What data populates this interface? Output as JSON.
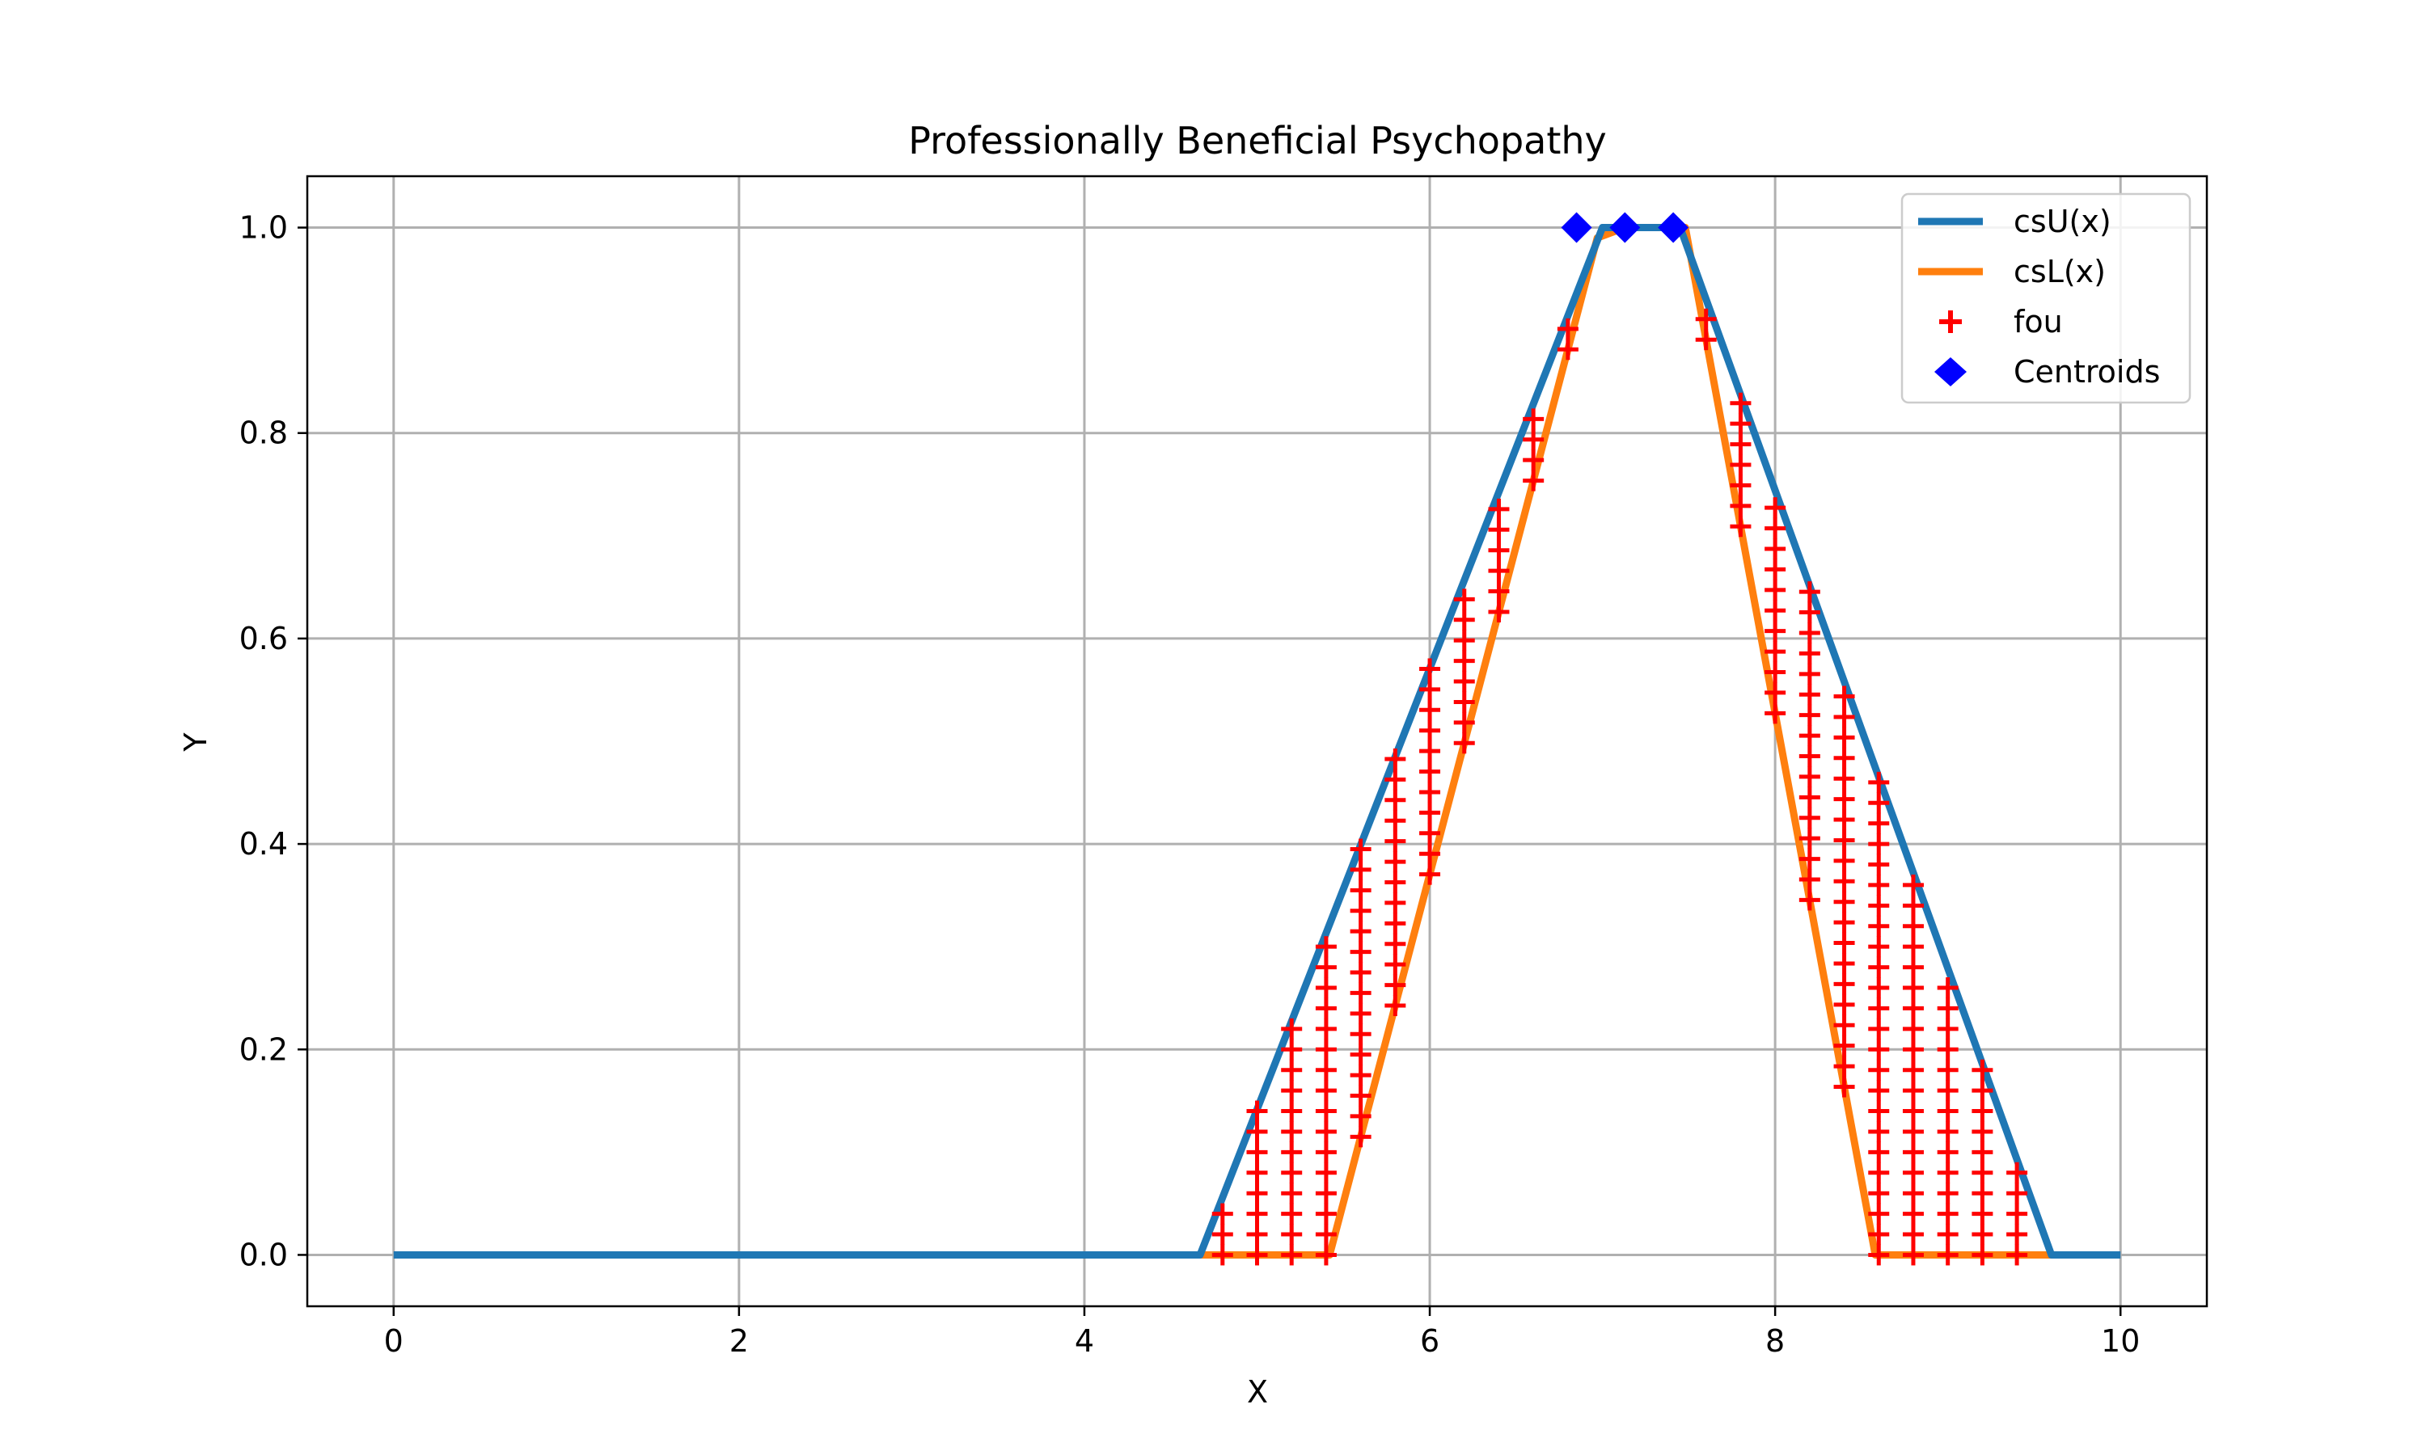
{
  "chart_data": {
    "type": "line",
    "title": "Professionally Beneficial Psychopathy",
    "xlabel": "X",
    "ylabel": "Y",
    "xlim": [
      -0.5,
      10.5
    ],
    "ylim": [
      -0.05,
      1.05
    ],
    "x_ticks": [
      "0",
      "2",
      "4",
      "6",
      "8",
      "10"
    ],
    "y_ticks": [
      "0.0",
      "0.2",
      "0.4",
      "0.6",
      "0.8",
      "1.0"
    ],
    "grid": true,
    "legend_position": "top-right",
    "series": [
      {
        "name": "csU(x)",
        "color": "#1f77b4",
        "points": [
          [
            0,
            0
          ],
          [
            4.67,
            0
          ],
          [
            7.0,
            1.0
          ],
          [
            7.45,
            1.0
          ],
          [
            9.6,
            0
          ],
          [
            10,
            0
          ]
        ]
      },
      {
        "name": "csL(x)",
        "color": "#ff7f0e",
        "points": [
          [
            4.67,
            0
          ],
          [
            5.42,
            0
          ],
          [
            6.97,
            0.99
          ],
          [
            7.13,
            1.0
          ],
          [
            7.48,
            1.0
          ],
          [
            8.58,
            0
          ],
          [
            9.6,
            0
          ]
        ]
      }
    ],
    "fou": {
      "name": "fou",
      "color": "#ff0000",
      "marker": "plus",
      "x": [
        4.8,
        5.0,
        5.2,
        5.4,
        5.6,
        5.8,
        6.0,
        6.2,
        6.4,
        6.6,
        6.8,
        7.6,
        7.8,
        8.0,
        8.2,
        8.4,
        8.6,
        8.8,
        9.0,
        9.2,
        9.4
      ],
      "step": 0.02
    },
    "centroids": {
      "name": "Centroids",
      "color": "#0000ff",
      "marker": "diamond",
      "x": [
        6.85,
        7.13,
        7.41
      ],
      "y": [
        1.0,
        1.0,
        1.0
      ]
    }
  }
}
